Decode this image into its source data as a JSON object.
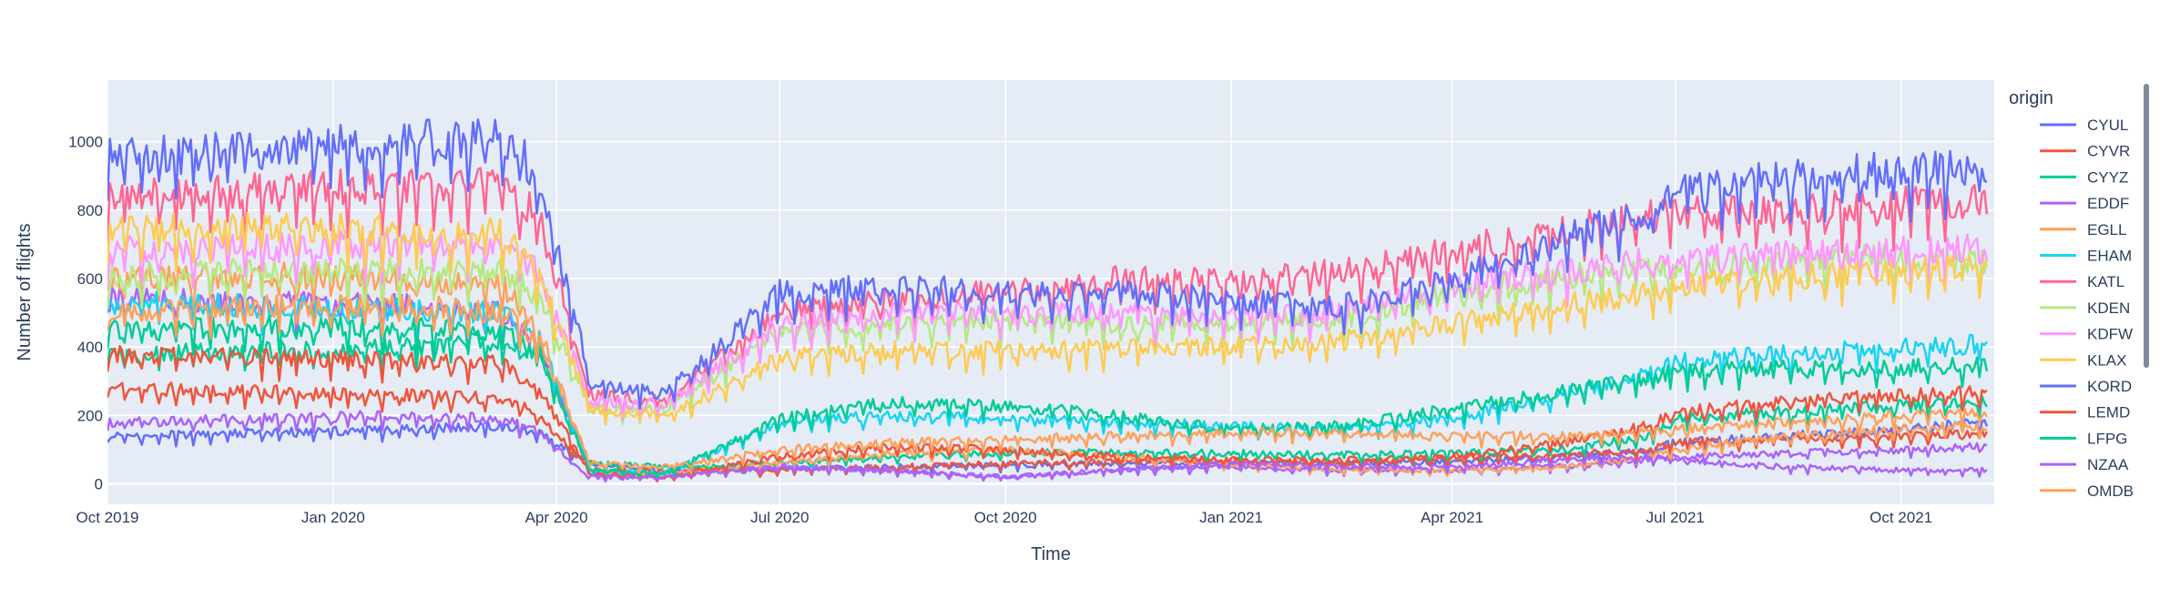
{
  "chart_data": {
    "type": "line",
    "title": "",
    "xlabel": "Time",
    "ylabel": "Number of flights",
    "x_range": [
      "2019-10-01",
      "2021-11-08"
    ],
    "ylim": [
      -60,
      1180
    ],
    "x_ticks": [
      {
        "date": "2019-10-01",
        "label": "Oct 2019"
      },
      {
        "date": "2020-01-01",
        "label": "Jan 2020"
      },
      {
        "date": "2020-04-01",
        "label": "Apr 2020"
      },
      {
        "date": "2020-07-01",
        "label": "Jul 2020"
      },
      {
        "date": "2020-10-01",
        "label": "Oct 2020"
      },
      {
        "date": "2021-01-01",
        "label": "Jan 2021"
      },
      {
        "date": "2021-04-01",
        "label": "Apr 2021"
      },
      {
        "date": "2021-07-01",
        "label": "Jul 2021"
      },
      {
        "date": "2021-10-01",
        "label": "Oct 2021"
      }
    ],
    "y_ticks": [
      0,
      200,
      400,
      600,
      800,
      1000
    ],
    "grid": true,
    "legend_title": "origin",
    "legend_position": "right",
    "series": [
      {
        "name": "CYUL",
        "color": "#636efa",
        "x": [
          "2019-10-01",
          "2019-12-01",
          "2020-02-01",
          "2020-03-10",
          "2020-03-25",
          "2020-04-15",
          "2020-05-15",
          "2020-07-01",
          "2020-08-15",
          "2020-10-01",
          "2020-11-15",
          "2021-01-01",
          "2021-02-15",
          "2021-04-01",
          "2021-05-15",
          "2021-06-20",
          "2021-07-01",
          "2021-08-15",
          "2021-10-01",
          "2021-11-05"
        ],
        "y": [
          140,
          150,
          160,
          170,
          150,
          60,
          40,
          45,
          50,
          55,
          60,
          60,
          62,
          65,
          80,
          100,
          120,
          140,
          160,
          180
        ]
      },
      {
        "name": "CYVR",
        "color": "#EF553B",
        "x": [
          "2019-10-01",
          "2019-12-01",
          "2020-02-01",
          "2020-03-10",
          "2020-03-25",
          "2020-04-15",
          "2020-05-15",
          "2020-07-01",
          "2020-08-15",
          "2020-10-01",
          "2020-11-15",
          "2021-01-01",
          "2021-02-15",
          "2021-04-01",
          "2021-05-15",
          "2021-06-20",
          "2021-07-01",
          "2021-08-15",
          "2021-10-01",
          "2021-11-05"
        ],
        "y": [
          280,
          270,
          260,
          250,
          200,
          40,
          35,
          40,
          50,
          60,
          65,
          70,
          70,
          75,
          85,
          100,
          120,
          130,
          140,
          150
        ]
      },
      {
        "name": "CYYZ",
        "color": "#00cc96",
        "x": [
          "2019-10-01",
          "2019-12-01",
          "2020-02-01",
          "2020-03-10",
          "2020-03-25",
          "2020-04-15",
          "2020-05-15",
          "2020-07-01",
          "2020-08-15",
          "2020-10-01",
          "2020-11-15",
          "2021-01-01",
          "2021-02-15",
          "2021-04-01",
          "2021-05-15",
          "2021-06-20",
          "2021-07-01",
          "2021-08-15",
          "2021-10-01",
          "2021-11-05"
        ],
        "y": [
          380,
          390,
          400,
          420,
          380,
          60,
          50,
          60,
          80,
          90,
          95,
          90,
          85,
          90,
          100,
          140,
          190,
          210,
          230,
          240
        ]
      },
      {
        "name": "EDDF",
        "color": "#ab63fa",
        "x": [
          "2019-10-01",
          "2019-12-01",
          "2020-02-01",
          "2020-03-10",
          "2020-03-25",
          "2020-04-15",
          "2020-05-15",
          "2020-07-01",
          "2020-08-15",
          "2020-10-01",
          "2020-11-15",
          "2021-01-01",
          "2021-02-15",
          "2021-04-01",
          "2021-05-15",
          "2021-06-20",
          "2021-07-01",
          "2021-08-15",
          "2021-10-01",
          "2021-11-05"
        ],
        "y": [
          540,
          530,
          520,
          500,
          400,
          30,
          30,
          50,
          40,
          20,
          40,
          50,
          40,
          40,
          50,
          70,
          80,
          90,
          100,
          110
        ]
      },
      {
        "name": "EGLL",
        "color": "#FFA15A",
        "x": [
          "2019-10-01",
          "2019-12-01",
          "2020-02-01",
          "2020-03-10",
          "2020-03-25",
          "2020-04-15",
          "2020-05-15",
          "2020-07-01",
          "2020-08-15",
          "2020-10-01",
          "2020-11-15",
          "2021-01-01",
          "2021-02-15",
          "2021-04-01",
          "2021-05-15",
          "2021-06-20",
          "2021-07-01",
          "2021-08-15",
          "2021-10-01",
          "2021-11-05"
        ],
        "y": [
          600,
          610,
          600,
          580,
          450,
          40,
          30,
          60,
          90,
          100,
          80,
          60,
          40,
          40,
          50,
          80,
          100,
          140,
          160,
          170
        ]
      },
      {
        "name": "EHAM",
        "color": "#19d3f3",
        "x": [
          "2019-10-01",
          "2019-12-01",
          "2020-02-01",
          "2020-03-10",
          "2020-03-25",
          "2020-04-15",
          "2020-05-15",
          "2020-07-01",
          "2020-08-15",
          "2020-10-01",
          "2020-11-15",
          "2021-01-01",
          "2021-02-15",
          "2021-04-01",
          "2021-05-15",
          "2021-06-20",
          "2021-07-01",
          "2021-08-15",
          "2021-10-01",
          "2021-11-05"
        ],
        "y": [
          530,
          520,
          510,
          500,
          420,
          40,
          30,
          180,
          200,
          190,
          180,
          170,
          160,
          190,
          260,
          320,
          360,
          380,
          400,
          410
        ]
      },
      {
        "name": "KATL",
        "color": "#FF6692",
        "x": [
          "2019-10-01",
          "2019-12-01",
          "2020-02-01",
          "2020-03-10",
          "2020-03-25",
          "2020-04-15",
          "2020-05-15",
          "2020-07-01",
          "2020-08-15",
          "2020-10-01",
          "2020-11-15",
          "2021-01-01",
          "2021-02-15",
          "2021-04-01",
          "2021-05-15",
          "2021-06-20",
          "2021-07-01",
          "2021-08-15",
          "2021-10-01",
          "2021-11-05"
        ],
        "y": [
          840,
          860,
          870,
          880,
          780,
          260,
          240,
          500,
          540,
          560,
          600,
          590,
          620,
          680,
          740,
          780,
          790,
          800,
          820,
          830
        ]
      },
      {
        "name": "KDEN",
        "color": "#B6E880",
        "x": [
          "2019-10-01",
          "2019-12-01",
          "2020-02-01",
          "2020-03-10",
          "2020-03-25",
          "2020-04-15",
          "2020-05-15",
          "2020-07-01",
          "2020-08-15",
          "2020-10-01",
          "2020-11-15",
          "2021-01-01",
          "2021-02-15",
          "2021-04-01",
          "2021-05-15",
          "2021-06-20",
          "2021-07-01",
          "2021-08-15",
          "2021-10-01",
          "2021-11-05"
        ],
        "y": [
          610,
          620,
          620,
          630,
          540,
          220,
          220,
          440,
          470,
          480,
          470,
          470,
          480,
          560,
          600,
          630,
          640,
          650,
          660,
          650
        ]
      },
      {
        "name": "KDFW",
        "color": "#FF97FF",
        "x": [
          "2019-10-01",
          "2019-12-01",
          "2020-02-01",
          "2020-03-10",
          "2020-03-25",
          "2020-04-15",
          "2020-05-15",
          "2020-07-01",
          "2020-08-15",
          "2020-10-01",
          "2020-11-15",
          "2021-01-01",
          "2021-02-15",
          "2021-04-01",
          "2021-05-15",
          "2021-06-20",
          "2021-07-01",
          "2021-08-15",
          "2021-10-01",
          "2021-11-05"
        ],
        "y": [
          680,
          690,
          700,
          710,
          620,
          240,
          230,
          470,
          500,
          500,
          500,
          490,
          500,
          580,
          620,
          650,
          660,
          670,
          680,
          690
        ]
      },
      {
        "name": "KLAX",
        "color": "#FECB52",
        "x": [
          "2019-10-01",
          "2019-12-01",
          "2020-02-01",
          "2020-03-10",
          "2020-03-25",
          "2020-04-15",
          "2020-05-15",
          "2020-07-01",
          "2020-08-15",
          "2020-10-01",
          "2020-11-15",
          "2021-01-01",
          "2021-02-15",
          "2021-04-01",
          "2021-05-15",
          "2021-06-20",
          "2021-07-01",
          "2021-08-15",
          "2021-10-01",
          "2021-11-05"
        ],
        "y": [
          740,
          750,
          740,
          730,
          620,
          220,
          200,
          370,
          390,
          390,
          400,
          400,
          420,
          470,
          520,
          560,
          580,
          600,
          620,
          630
        ]
      },
      {
        "name": "KORD",
        "color": "#636efa",
        "x": [
          "2019-10-01",
          "2019-12-01",
          "2020-02-01",
          "2020-03-10",
          "2020-03-25",
          "2020-04-15",
          "2020-05-15",
          "2020-07-01",
          "2020-08-15",
          "2020-10-01",
          "2020-11-15",
          "2021-01-01",
          "2021-02-15",
          "2021-04-01",
          "2021-05-15",
          "2021-06-20",
          "2021-07-01",
          "2021-08-15",
          "2021-10-01",
          "2021-11-05"
        ],
        "y": [
          950,
          980,
          1000,
          1020,
          900,
          300,
          260,
          560,
          580,
          560,
          560,
          540,
          520,
          600,
          720,
          790,
          860,
          900,
          920,
          930
        ]
      },
      {
        "name": "LEMD",
        "color": "#EF553B",
        "x": [
          "2019-10-01",
          "2019-12-01",
          "2020-02-01",
          "2020-03-10",
          "2020-03-25",
          "2020-04-15",
          "2020-05-15",
          "2020-07-01",
          "2020-08-15",
          "2020-10-01",
          "2020-11-15",
          "2021-01-01",
          "2021-02-15",
          "2021-04-01",
          "2021-05-15",
          "2021-06-20",
          "2021-07-01",
          "2021-08-15",
          "2021-10-01",
          "2021-11-05"
        ],
        "y": [
          380,
          370,
          360,
          350,
          280,
          30,
          20,
          80,
          110,
          100,
          80,
          70,
          60,
          80,
          120,
          170,
          210,
          240,
          260,
          270
        ]
      },
      {
        "name": "LFPG",
        "color": "#00cc96",
        "x": [
          "2019-10-01",
          "2019-12-01",
          "2020-02-01",
          "2020-03-10",
          "2020-03-25",
          "2020-04-15",
          "2020-05-15",
          "2020-07-01",
          "2020-08-15",
          "2020-10-01",
          "2020-11-15",
          "2021-01-01",
          "2021-02-15",
          "2021-04-01",
          "2021-05-15",
          "2021-06-20",
          "2021-07-01",
          "2021-08-15",
          "2021-10-01",
          "2021-11-05"
        ],
        "y": [
          450,
          460,
          460,
          450,
          380,
          40,
          30,
          190,
          240,
          230,
          200,
          160,
          170,
          220,
          270,
          310,
          330,
          340,
          340,
          350
        ]
      },
      {
        "name": "NZAA",
        "color": "#ab63fa",
        "x": [
          "2019-10-01",
          "2019-12-01",
          "2020-02-01",
          "2020-03-10",
          "2020-03-25",
          "2020-04-15",
          "2020-05-15",
          "2020-07-01",
          "2020-08-15",
          "2020-10-01",
          "2020-11-15",
          "2021-01-01",
          "2021-02-15",
          "2021-04-01",
          "2021-05-15",
          "2021-06-20",
          "2021-07-01",
          "2021-08-15",
          "2021-10-01",
          "2021-11-05"
        ],
        "y": [
          180,
          190,
          200,
          190,
          150,
          20,
          20,
          50,
          40,
          20,
          40,
          60,
          50,
          50,
          70,
          80,
          70,
          50,
          40,
          40
        ]
      },
      {
        "name": "OMDB",
        "color": "#FFA15A",
        "x": [
          "2019-10-01",
          "2019-12-01",
          "2020-02-01",
          "2020-03-10",
          "2020-03-25",
          "2020-04-15",
          "2020-05-15",
          "2020-07-01",
          "2020-08-15",
          "2020-10-01",
          "2020-11-15",
          "2021-01-01",
          "2021-02-15",
          "2021-04-01",
          "2021-05-15",
          "2021-06-20",
          "2021-07-01",
          "2021-08-15",
          "2021-10-01",
          "2021-11-05"
        ],
        "y": [
          500,
          520,
          520,
          500,
          420,
          60,
          50,
          100,
          120,
          130,
          140,
          150,
          150,
          140,
          140,
          150,
          160,
          180,
          200,
          210
        ]
      }
    ]
  }
}
